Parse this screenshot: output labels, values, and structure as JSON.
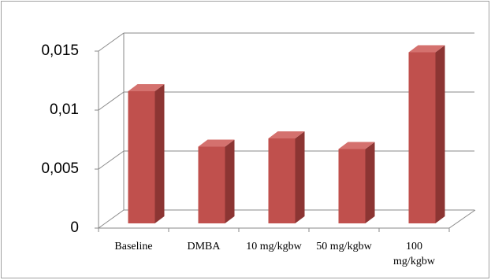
{
  "chart_data": {
    "type": "bar3d",
    "categories": [
      "Baseline",
      "DMBA",
      "10 mg/kgbw",
      "50 mg/kgbw",
      "100 mg/kgbw"
    ],
    "values": [
      0.0112,
      0.0065,
      0.0072,
      0.0063,
      0.0145
    ],
    "color": "#c0504d",
    "ylim": [
      0,
      0.015
    ],
    "yticks": [
      0,
      {
        "value": 0.005,
        "label": "0,005"
      },
      {
        "value": 0.01,
        "label": "0,01"
      },
      {
        "value": 0.015,
        "label": "0,015"
      }
    ],
    "grid": true
  }
}
